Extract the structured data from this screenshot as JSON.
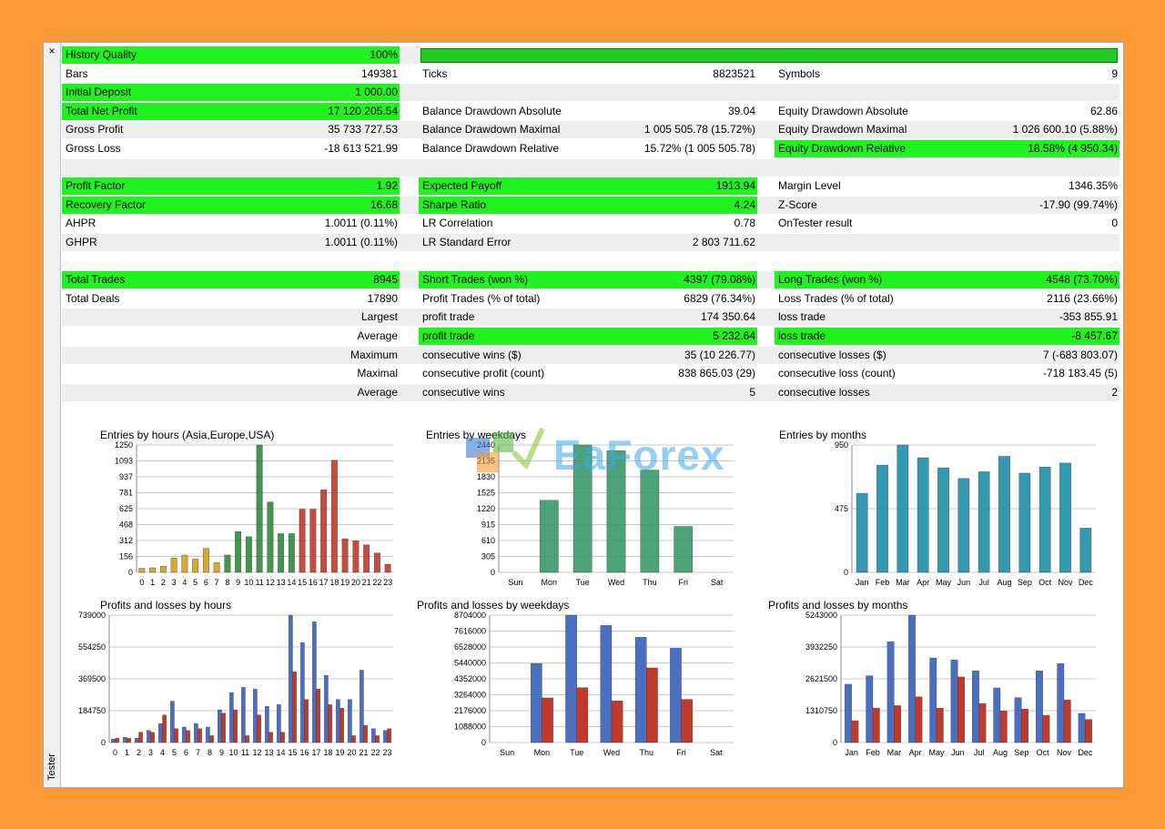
{
  "window": {
    "side_label": "Tester",
    "close_glyph": "×"
  },
  "watermark": {
    "text": "EaForex"
  },
  "colors": {
    "highlight": "#1ff21f",
    "bar_blue": "#4a6fc0",
    "bar_red": "#c0392b"
  },
  "rows": [
    {
      "shade": true,
      "cells": [
        {
          "label": "History Quality",
          "value": "100%",
          "green": true
        },
        null,
        null
      ]
    },
    {
      "shade": false,
      "cells": [
        {
          "label": "Bars",
          "value": "149381",
          "green": false
        },
        {
          "label": "Ticks",
          "value": "8823521",
          "green": false
        },
        {
          "label": "Symbols",
          "value": "9",
          "green": false
        }
      ]
    },
    {
      "shade": true,
      "cells": [
        {
          "label": "Initial Deposit",
          "value": "1 000.00",
          "green": true
        },
        null,
        null
      ]
    },
    {
      "shade": false,
      "cells": [
        {
          "label": "Total Net Profit",
          "value": "17 120 205.54",
          "green": true
        },
        {
          "label": "Balance Drawdown Absolute",
          "value": "39.04",
          "green": false
        },
        {
          "label": "Equity Drawdown Absolute",
          "value": "62.86",
          "green": false
        }
      ]
    },
    {
      "shade": true,
      "cells": [
        {
          "label": "Gross Profit",
          "value": "35 733 727.53",
          "green": false
        },
        {
          "label": "Balance Drawdown Maximal",
          "value": "1 005 505.78 (15.72%)",
          "green": false
        },
        {
          "label": "Equity Drawdown Maximal",
          "value": "1 026 600.10 (5.88%)",
          "green": false
        }
      ]
    },
    {
      "shade": false,
      "cells": [
        {
          "label": "Gross Loss",
          "value": "-18 613 521.99",
          "green": false
        },
        {
          "label": "Balance Drawdown Relative",
          "value": "15.72% (1 005 505.78)",
          "green": false
        },
        {
          "label": "Equity Drawdown Relative",
          "value": "18.58% (4 950.34)",
          "green": true
        }
      ]
    },
    {
      "shade": true,
      "cells": [
        null,
        null,
        null
      ]
    },
    {
      "shade": false,
      "cells": [
        {
          "label": "Profit Factor",
          "value": "1.92",
          "green": true
        },
        {
          "label": "Expected Payoff",
          "value": "1913.94",
          "green": true
        },
        {
          "label": "Margin Level",
          "value": "1346.35%",
          "green": false
        }
      ]
    },
    {
      "shade": true,
      "cells": [
        {
          "label": "Recovery Factor",
          "value": "16.68",
          "green": true
        },
        {
          "label": "Sharpe Ratio",
          "value": "4.24",
          "green": true
        },
        {
          "label": "Z-Score",
          "value": "-17.90 (99.74%)",
          "green": false
        }
      ]
    },
    {
      "shade": false,
      "cells": [
        {
          "label": "AHPR",
          "value": "1.0011 (0.11%)",
          "green": false
        },
        {
          "label": "LR Correlation",
          "value": "0.78",
          "green": false
        },
        {
          "label": "OnTester result",
          "value": "0",
          "green": false
        }
      ]
    },
    {
      "shade": true,
      "cells": [
        {
          "label": "GHPR",
          "value": "1.0011 (0.11%)",
          "green": false
        },
        {
          "label": "LR Standard Error",
          "value": "2 803 711.62",
          "green": false
        },
        null
      ]
    },
    {
      "shade": false,
      "cells": [
        null,
        null,
        null
      ]
    },
    {
      "shade": true,
      "cells": [
        {
          "label": "Total Trades",
          "value": "8945",
          "green": true
        },
        {
          "label": "Short Trades (won %)",
          "value": "4397 (79.08%)",
          "green": true
        },
        {
          "label": "Long Trades (won %)",
          "value": "4548 (73.70%)",
          "green": true
        }
      ]
    },
    {
      "shade": false,
      "cells": [
        {
          "label": "Total Deals",
          "value": "17890",
          "green": false
        },
        {
          "label": "Profit Trades (% of total)",
          "value": "6829 (76.34%)",
          "green": false
        },
        {
          "label": "Loss Trades (% of total)",
          "value": "2116 (23.66%)",
          "green": false
        }
      ]
    },
    {
      "shade": true,
      "cells": [
        {
          "rlabel": "Largest",
          "green": false
        },
        {
          "label": "profit trade",
          "value": "174 350.64",
          "green": false
        },
        {
          "label": "loss trade",
          "value": "-353 855.91",
          "green": false
        }
      ]
    },
    {
      "shade": false,
      "cells": [
        {
          "rlabel": "Average",
          "green": false
        },
        {
          "label": "profit trade",
          "value": "5 232.64",
          "green": true
        },
        {
          "label": "loss trade",
          "value": "-8 457.67",
          "green": true
        }
      ]
    },
    {
      "shade": true,
      "cells": [
        {
          "rlabel": "Maximum",
          "green": false
        },
        {
          "label": "consecutive wins ($)",
          "value": "35 (10 226.77)",
          "green": false
        },
        {
          "label": "consecutive losses ($)",
          "value": "7 (-683 803.07)",
          "green": false
        }
      ]
    },
    {
      "shade": false,
      "cells": [
        {
          "rlabel": "Maximal",
          "green": false
        },
        {
          "label": "consecutive profit (count)",
          "value": "838 865.03 (29)",
          "green": false
        },
        {
          "label": "consecutive loss (count)",
          "value": "-718 183.45 (5)",
          "green": false
        }
      ]
    },
    {
      "shade": true,
      "cells": [
        {
          "rlabel": "Average",
          "green": false
        },
        {
          "label": "consecutive wins",
          "value": "5",
          "green": false
        },
        {
          "label": "consecutive losses",
          "value": "2",
          "green": false
        }
      ]
    }
  ],
  "chart_data": [
    {
      "type": "bar",
      "title": "Entries by hours (Asia,Europe,USA)",
      "categories": [
        "0",
        "1",
        "2",
        "3",
        "4",
        "5",
        "6",
        "7",
        "8",
        "9",
        "10",
        "11",
        "12",
        "13",
        "14",
        "15",
        "16",
        "17",
        "18",
        "19",
        "20",
        "21",
        "22",
        "23"
      ],
      "yticks": [
        "1250",
        "1093",
        "937",
        "781",
        "625",
        "468",
        "312",
        "156",
        "0"
      ],
      "ylim": [
        0,
        1250
      ],
      "values": [
        40,
        45,
        60,
        140,
        170,
        130,
        235,
        95,
        170,
        400,
        350,
        1250,
        690,
        380,
        380,
        620,
        620,
        810,
        1100,
        330,
        310,
        270,
        190,
        80
      ],
      "colors": [
        "#d4a017",
        "#d4a017",
        "#d4a017",
        "#d4a017",
        "#d4a017",
        "#d4a017",
        "#d4a017",
        "#d4a017",
        "#2e8b3a",
        "#2e8b3a",
        "#2e8b3a",
        "#2e8b3a",
        "#2e8b3a",
        "#2e8b3a",
        "#2e8b3a",
        "#c0392b",
        "#c0392b",
        "#c0392b",
        "#c0392b",
        "#c0392b",
        "#c0392b",
        "#c0392b",
        "#c0392b",
        "#c0392b"
      ]
    },
    {
      "type": "bar",
      "title": "Entries by weekdays",
      "categories": [
        "Sun",
        "Mon",
        "Tue",
        "Wed",
        "Thu",
        "Fri",
        "Sat"
      ],
      "yticks": [
        "2440",
        "2135",
        "1830",
        "1525",
        "1220",
        "915",
        "610",
        "305",
        "0"
      ],
      "ylim": [
        0,
        2440
      ],
      "values": [
        0,
        1380,
        2440,
        2330,
        1960,
        880,
        0
      ],
      "colors": [
        "#3a9a6a"
      ]
    },
    {
      "type": "bar",
      "title": "Entries by months",
      "categories": [
        "Jan",
        "Feb",
        "Mar",
        "Apr",
        "May",
        "Jun",
        "Jul",
        "Aug",
        "Sep",
        "Oct",
        "Nov",
        "Dec"
      ],
      "yticks": [
        "950",
        "475",
        "0"
      ],
      "ylim": [
        0,
        950
      ],
      "values": [
        590,
        800,
        950,
        855,
        780,
        700,
        750,
        865,
        740,
        785,
        815,
        330
      ],
      "colors": [
        "#1f8fa8"
      ]
    },
    {
      "type": "bar",
      "title": "Profits and losses by hours",
      "categories": [
        "0",
        "1",
        "2",
        "3",
        "4",
        "5",
        "6",
        "7",
        "8",
        "9",
        "10",
        "11",
        "12",
        "13",
        "14",
        "15",
        "16",
        "17",
        "18",
        "19",
        "20",
        "21",
        "22",
        "23"
      ],
      "yticks": [
        "739000",
        "554250",
        "369500",
        "184750",
        "0"
      ],
      "ylim": [
        0,
        739000
      ],
      "series": [
        {
          "values": [
            20000,
            30000,
            25000,
            70000,
            110000,
            240000,
            90000,
            110000,
            90000,
            190000,
            290000,
            320000,
            310000,
            210000,
            220000,
            739000,
            580000,
            700000,
            390000,
            250000,
            250000,
            420000,
            80000,
            70000
          ],
          "color": "#4a6fc0"
        },
        {
          "values": [
            25000,
            25000,
            60000,
            60000,
            160000,
            80000,
            70000,
            80000,
            40000,
            170000,
            190000,
            40000,
            160000,
            60000,
            60000,
            410000,
            250000,
            310000,
            220000,
            200000,
            40000,
            100000,
            40000,
            80000
          ],
          "color": "#c0392b"
        }
      ]
    },
    {
      "type": "bar",
      "title": "Profits and losses by weekdays",
      "categories": [
        "Sun",
        "Mon",
        "Tue",
        "Wed",
        "Thu",
        "Fri",
        "Sat"
      ],
      "yticks": [
        "8704000",
        "7616000",
        "6528000",
        "5440000",
        "4352000",
        "3264000",
        "2176000",
        "1088000",
        "0"
      ],
      "ylim": [
        0,
        8704000
      ],
      "series": [
        {
          "values": [
            0,
            5400000,
            8704000,
            8000000,
            7200000,
            6450000,
            0
          ],
          "color": "#4a6fc0"
        },
        {
          "values": [
            0,
            3050000,
            3750000,
            2850000,
            5100000,
            2950000,
            0
          ],
          "color": "#c0392b"
        }
      ]
    },
    {
      "type": "bar",
      "title": "Profits and losses by months",
      "categories": [
        "Jan",
        "Feb",
        "Mar",
        "Apr",
        "May",
        "Jun",
        "Jul",
        "Aug",
        "Sep",
        "Oct",
        "Nov",
        "Dec"
      ],
      "yticks": [
        "5243000",
        "3932250",
        "2621500",
        "1310750",
        "0"
      ],
      "ylim": [
        0,
        5243000
      ],
      "series": [
        {
          "values": [
            2400000,
            2750000,
            4150000,
            5243000,
            3480000,
            3400000,
            2950000,
            2250000,
            1850000,
            2950000,
            3250000,
            1200000
          ],
          "color": "#4a6fc0"
        },
        {
          "values": [
            900000,
            1420000,
            1520000,
            1880000,
            1420000,
            2700000,
            1600000,
            1300000,
            1380000,
            1120000,
            1750000,
            950000
          ],
          "color": "#c0392b"
        }
      ]
    }
  ]
}
